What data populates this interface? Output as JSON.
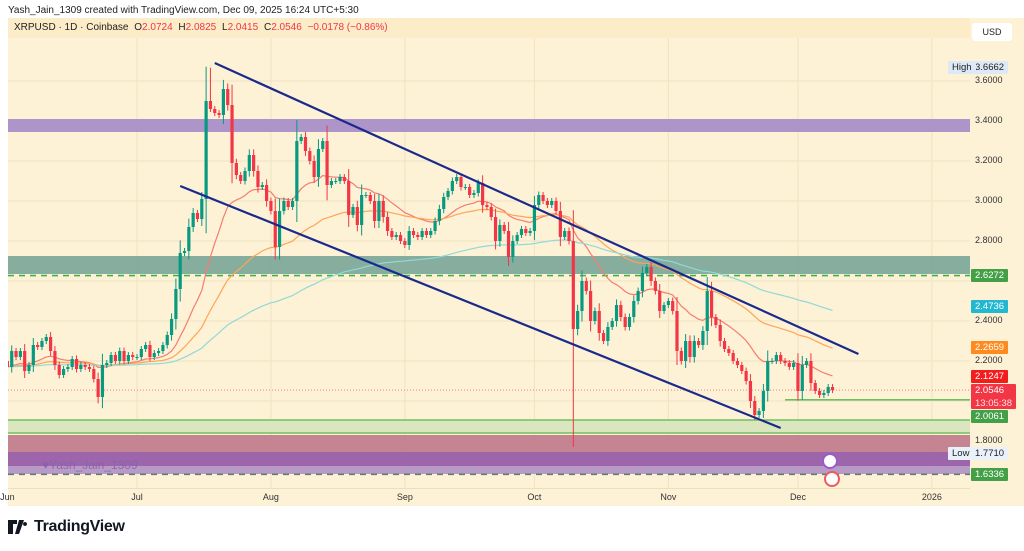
{
  "header": {
    "caption": "Yash_Jain_1309 created with TradingView.com, Dec 09, 2025 16:24 UTC+5:30",
    "symbol": "XRPUSD · 1D · Coinbase",
    "o_label": "O",
    "o": "2.0724",
    "h_label": "H",
    "h": "2.0825",
    "l_label": "L",
    "l": "2.0415",
    "c_label": "C",
    "c": "2.0546",
    "change": "−0.0178 (−0.86%)"
  },
  "currency": "USD",
  "watermark": "Yash_Jain_1309",
  "logo": "TradingView",
  "colors": {
    "up": "#089981",
    "down": "#f23645",
    "background": "#fdf1d6",
    "trendline": "#1a2a8c",
    "ema_fast": "#f77c6f",
    "ema_mid": "#ffa556",
    "ma_slow": "#8fdad8"
  },
  "chart_data": {
    "type": "candlestick",
    "symbol": "XRPUSD",
    "interval": "1D",
    "ylim": [
      1.6,
      3.7
    ],
    "grid": true,
    "y_ticks": [
      "3.6000",
      "3.4000",
      "3.2000",
      "3.0000",
      "2.8000",
      "2.4000",
      "2.2000",
      "1.8000"
    ],
    "x_ticks": [
      "Jun",
      "Jul",
      "Aug",
      "Sep",
      "Oct",
      "Nov",
      "Dec",
      "2026"
    ],
    "months": [
      {
        "label": "Jun",
        "closes": [
          2.17,
          2.25,
          2.22,
          2.25,
          2.15,
          2.18,
          2.28,
          2.27,
          2.3,
          2.32,
          2.25,
          2.18,
          2.13,
          2.16,
          2.17,
          2.21,
          2.16,
          2.18,
          2.17,
          2.16,
          2.11,
          2.02,
          2.18,
          2.19,
          2.23,
          2.2,
          2.25,
          2.2,
          2.23,
          2.22
        ]
      },
      {
        "label": "Jul",
        "closes": [
          2.22,
          2.26,
          2.28,
          2.22,
          2.24,
          2.25,
          2.28,
          2.33,
          2.41,
          2.56,
          2.74,
          2.75,
          2.87,
          2.94,
          2.91,
          3.01,
          3.5,
          3.46,
          3.44,
          3.43,
          3.56,
          3.48,
          3.19,
          3.13,
          3.1,
          3.15,
          3.23,
          3.15,
          3.07,
          3.08,
          3.0
        ]
      },
      {
        "label": "Aug",
        "closes": [
          2.95,
          2.77,
          2.95,
          3.0,
          2.97,
          3.0,
          3.3,
          3.32,
          3.25,
          3.2,
          3.12,
          3.26,
          3.3,
          3.08,
          3.1,
          3.1,
          3.12,
          3.1,
          2.93,
          2.97,
          2.88,
          3.03,
          3.03,
          3.0,
          2.9,
          3.0,
          2.92,
          2.85,
          2.82,
          2.83,
          2.8
        ]
      },
      {
        "label": "Sep",
        "closes": [
          2.78,
          2.85,
          2.83,
          2.82,
          2.85,
          2.83,
          2.85,
          2.9,
          2.96,
          3.02,
          3.05,
          3.1,
          3.12,
          3.07,
          3.07,
          3.03,
          3.04,
          3.09,
          2.98,
          2.97,
          2.92,
          2.8,
          2.88,
          2.85,
          2.72,
          2.8,
          2.83,
          2.86,
          2.84,
          2.85
        ]
      },
      {
        "label": "Oct",
        "closes": [
          2.98,
          3.03,
          3.0,
          2.98,
          3.0,
          2.95,
          2.82,
          2.85,
          2.8,
          2.36,
          2.45,
          2.6,
          2.55,
          2.4,
          2.45,
          2.34,
          2.3,
          2.37,
          2.4,
          2.48,
          2.42,
          2.37,
          2.42,
          2.5,
          2.55,
          2.64,
          2.67,
          2.6,
          2.55,
          2.45,
          2.48
        ]
      },
      {
        "label": "Nov",
        "closes": [
          2.5,
          2.45,
          2.25,
          2.2,
          2.3,
          2.22,
          2.3,
          2.28,
          2.35,
          2.55,
          2.42,
          2.38,
          2.3,
          2.26,
          2.24,
          2.2,
          2.18,
          2.15,
          2.1,
          2.0,
          1.93,
          1.95,
          2.05,
          2.2,
          2.2,
          2.23,
          2.2,
          2.19,
          2.17,
          2.19
        ]
      },
      {
        "label": "Dec",
        "closes": [
          2.05,
          2.18,
          2.2,
          2.09,
          2.05,
          2.03,
          2.04,
          2.07,
          2.0546
        ]
      }
    ],
    "extremes": {
      "high": {
        "label": "High",
        "date": "2025-07-18",
        "value": "3.6662"
      },
      "low": {
        "label": "Low",
        "date": "2025-10-10",
        "value": "1.7710"
      }
    },
    "zones": [
      {
        "from": 3.345,
        "to": 3.41,
        "color": "#a98fc9"
      },
      {
        "from": 2.635,
        "to": 2.725,
        "color": "#7fa99a"
      },
      {
        "from": 1.84,
        "to": 1.905,
        "color": "#d8e6bd"
      },
      {
        "from": 1.745,
        "to": 1.83,
        "color": "#c17d8e"
      },
      {
        "from": 1.675,
        "to": 1.745,
        "color": "#985ea8"
      },
      {
        "from": 1.635,
        "to": 1.675,
        "color": "#b495c6"
      }
    ],
    "levels": [
      {
        "value": 2.6272,
        "style": "dashed",
        "color": "#3bb54a"
      },
      {
        "value": 1.6336,
        "style": "dashed",
        "color": "#5f7a7a"
      },
      {
        "value": 2.0546,
        "style": "dotted",
        "color": "#f77c80"
      },
      {
        "value": 2.0061,
        "style": "solid",
        "color": "#6fbf60",
        "from": "2025-11-28"
      },
      {
        "value": 1.905,
        "style": "solid",
        "color": "#6fbf60"
      },
      {
        "value": 1.84,
        "style": "solid",
        "color": "#6fbf60"
      }
    ],
    "trendlines": [
      {
        "from": {
          "date": "2025-07-19",
          "value": 3.69
        },
        "to": {
          "date": "2025-12-15",
          "value": 2.235
        }
      },
      {
        "from": {
          "date": "2025-07-11",
          "value": 3.075
        },
        "to": {
          "date": "2025-11-27",
          "value": 1.865
        }
      }
    ],
    "moving_averages": [
      {
        "type": "EMA",
        "period": 20,
        "color": "#f77c6f",
        "last": "2.1247"
      },
      {
        "type": "EMA",
        "period": 50,
        "color": "#ffa556",
        "last": "2.2659"
      },
      {
        "type": "MA",
        "period": 200,
        "color": "#8fdad8",
        "last": "2.4736"
      }
    ],
    "price_labels": [
      {
        "text": "2.6272",
        "value": 2.6272,
        "bg": "#43a047"
      },
      {
        "text": "2.4736",
        "value": 2.4736,
        "bg": "#22b8cf"
      },
      {
        "text": "2.2659",
        "value": 2.2659,
        "bg": "#ff8a1f"
      },
      {
        "text": "2.1247",
        "value": 2.1247,
        "bg": "#f41d1d"
      },
      {
        "text": "2.0546",
        "value": 2.0546,
        "bg": "#f23645",
        "sub": "13:05:38"
      },
      {
        "text": "2.0061",
        "value": 2.0061,
        "bg": "#43a047"
      },
      {
        "text": "1.6336",
        "value": 1.6336,
        "bg": "#43a047"
      }
    ]
  }
}
